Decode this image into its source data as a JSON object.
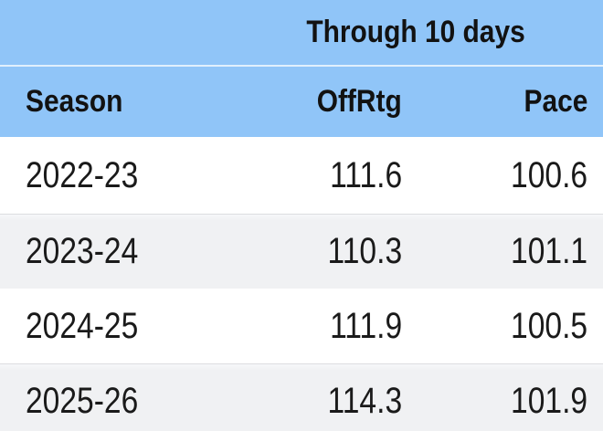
{
  "chart_data": {
    "type": "table",
    "title": "Through 10 days",
    "columns": [
      "Season",
      "OffRtg",
      "Pace"
    ],
    "rows": [
      [
        "2022-23",
        111.6,
        100.6
      ],
      [
        "2023-24",
        110.3,
        101.1
      ],
      [
        "2024-25",
        111.9,
        100.5
      ],
      [
        "2025-26",
        114.3,
        101.9
      ]
    ]
  },
  "colors": {
    "header_background": "#90C5F8",
    "row_background": "#FFFFFF",
    "row_alt_background": "#F0F1F3",
    "row_divider": "#DCDDE0",
    "text": "#1A1A1A"
  }
}
